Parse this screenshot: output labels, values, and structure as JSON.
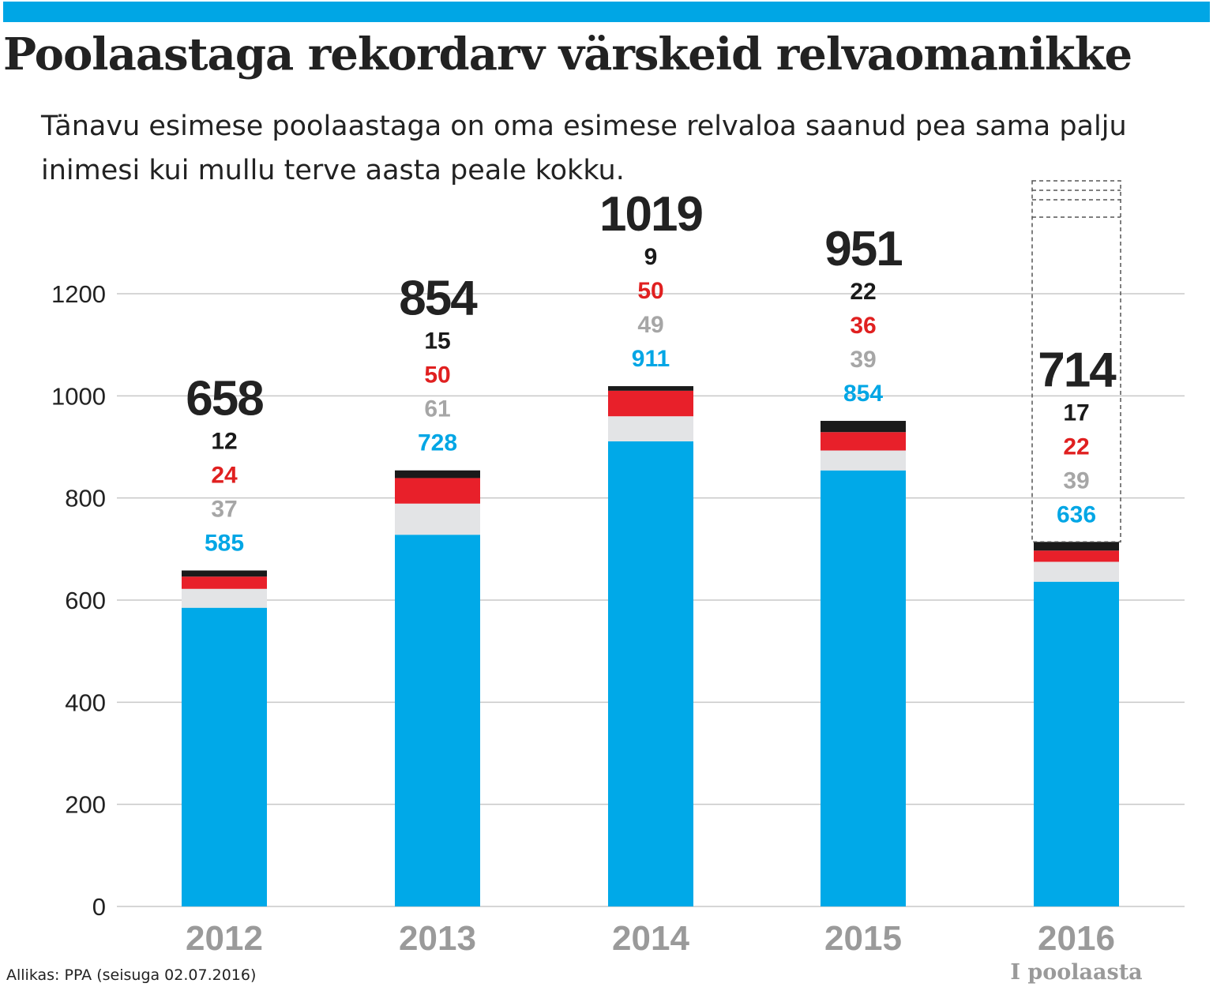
{
  "colors": {
    "accent_bar": "#00a6e5",
    "text": "#222222",
    "gridline": "#c8c8c8",
    "axis_year": "#9a9a9a",
    "seg_blue": "#00a9e8",
    "seg_lightgray": "#e3e4e6",
    "seg_red": "#e8202a",
    "seg_black": "#1a1a1a",
    "label_gray": "#a6a6a6",
    "dashed_outline": "#555555"
  },
  "header": {
    "title": "Poolaastaga rekordarv värskeid relvaomanikke",
    "subtitle": "Tänavu esimese poolaastaga on oma esimese relvaloa saanud pea sama palju inimesi kui mullu terve aasta peale kokku."
  },
  "footer": {
    "source": "Allikas: PPA (seisuga 02.07.2016)"
  },
  "chart_data": {
    "type": "bar",
    "stacked": true,
    "categories": [
      "2012",
      "2013",
      "2014",
      "2015",
      "2016"
    ],
    "category_sublabels": [
      "",
      "",
      "",
      "",
      "I poolaasta"
    ],
    "series": [
      {
        "color": "#00a9e8",
        "label_color": "#00a6e5",
        "values": [
          585,
          728,
          911,
          854,
          636
        ]
      },
      {
        "color": "#e3e4e6",
        "label_color": "#a6a6a6",
        "values": [
          37,
          61,
          49,
          39,
          39
        ]
      },
      {
        "color": "#e8202a",
        "label_color": "#e02020",
        "values": [
          24,
          50,
          50,
          36,
          22
        ]
      },
      {
        "color": "#1a1a1a",
        "label_color": "#1a1a1a",
        "values": [
          12,
          15,
          9,
          22,
          17
        ]
      }
    ],
    "totals": [
      658,
      854,
      1019,
      951,
      714
    ],
    "partial_year_outline": {
      "category": "2016",
      "description": "dashed outline above 2016 bar"
    },
    "yticks": [
      0,
      200,
      400,
      600,
      800,
      1000,
      1200
    ],
    "ylim": [
      0,
      1200
    ],
    "grid": true,
    "legend": "none"
  }
}
